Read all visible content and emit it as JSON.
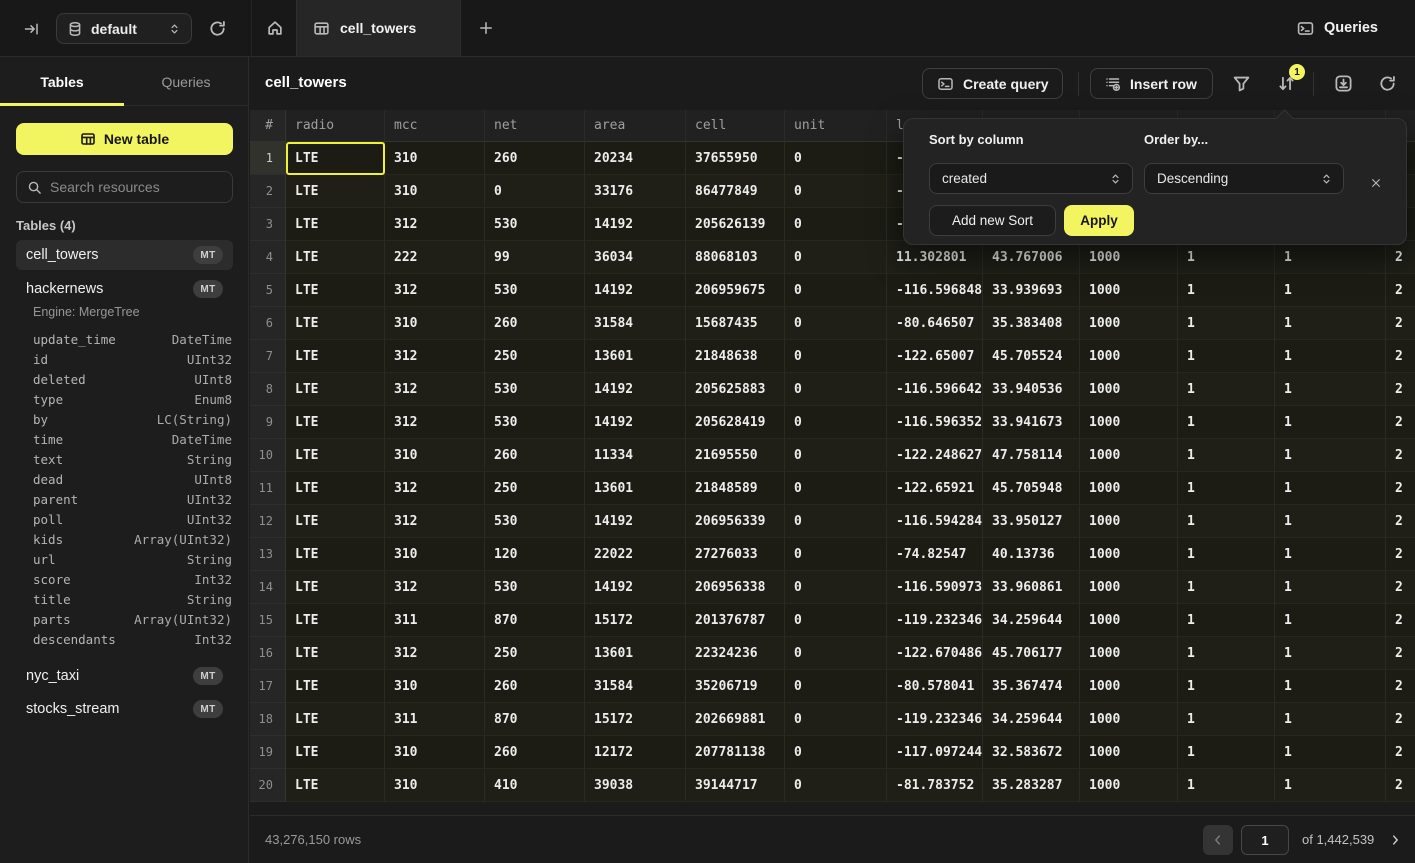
{
  "colors": {
    "accent": "#f2f55f"
  },
  "topbar": {
    "database_selector": "default",
    "active_tab": "cell_towers",
    "queries_label": "Queries"
  },
  "sidebar": {
    "tabs": {
      "tables": "Tables",
      "queries": "Queries"
    },
    "new_table_label": "New table",
    "search_placeholder": "Search resources",
    "section_label": "Tables (4)",
    "tables": [
      {
        "name": "cell_towers",
        "badge": "MT"
      },
      {
        "name": "hackernews",
        "badge": "MT"
      },
      {
        "name": "nyc_taxi",
        "badge": "MT"
      },
      {
        "name": "stocks_stream",
        "badge": "MT"
      }
    ],
    "engine_label": "Engine: MergeTree",
    "schema": [
      [
        "update_time",
        "DateTime"
      ],
      [
        "id",
        "UInt32"
      ],
      [
        "deleted",
        "UInt8"
      ],
      [
        "type",
        "Enum8"
      ],
      [
        "by",
        "LC(String)"
      ],
      [
        "time",
        "DateTime"
      ],
      [
        "text",
        "String"
      ],
      [
        "dead",
        "UInt8"
      ],
      [
        "parent",
        "UInt32"
      ],
      [
        "poll",
        "UInt32"
      ],
      [
        "kids",
        "Array(UInt32)"
      ],
      [
        "url",
        "String"
      ],
      [
        "score",
        "Int32"
      ],
      [
        "title",
        "String"
      ],
      [
        "parts",
        "Array(UInt32)"
      ],
      [
        "descendants",
        "Int32"
      ]
    ]
  },
  "main": {
    "title": "cell_towers",
    "create_query_label": "Create query",
    "insert_row_label": "Insert row",
    "sort_badge": "1",
    "table": {
      "column_labels": [
        "#",
        "radio",
        "mcc",
        "net",
        "area",
        "cell",
        "unit",
        "lon",
        "",
        "",
        "",
        "",
        ""
      ],
      "rows": [
        [
          "1",
          "LTE",
          "310",
          "260",
          "20234",
          "37655950",
          "0",
          "-7",
          "",
          "",
          "",
          "",
          ""
        ],
        [
          "2",
          "LTE",
          "310",
          "0",
          "33176",
          "86477849",
          "0",
          "-8",
          "",
          "",
          "",
          "",
          ""
        ],
        [
          "3",
          "LTE",
          "312",
          "530",
          "14192",
          "205626139",
          "0",
          "-1",
          "",
          "",
          "",
          "",
          ""
        ],
        [
          "4",
          "LTE",
          "222",
          "99",
          "36034",
          "88068103",
          "0",
          "11.302801",
          "43.767006",
          "1000",
          "1",
          "1",
          "2"
        ],
        [
          "5",
          "LTE",
          "312",
          "530",
          "14192",
          "206959675",
          "0",
          "-116.596848",
          "33.939693",
          "1000",
          "1",
          "1",
          "2"
        ],
        [
          "6",
          "LTE",
          "310",
          "260",
          "31584",
          "15687435",
          "0",
          "-80.646507",
          "35.383408",
          "1000",
          "1",
          "1",
          "2"
        ],
        [
          "7",
          "LTE",
          "312",
          "250",
          "13601",
          "21848638",
          "0",
          "-122.65007",
          "45.705524",
          "1000",
          "1",
          "1",
          "2"
        ],
        [
          "8",
          "LTE",
          "312",
          "530",
          "14192",
          "205625883",
          "0",
          "-116.596642",
          "33.940536",
          "1000",
          "1",
          "1",
          "2"
        ],
        [
          "9",
          "LTE",
          "312",
          "530",
          "14192",
          "205628419",
          "0",
          "-116.596352",
          "33.941673",
          "1000",
          "1",
          "1",
          "2"
        ],
        [
          "10",
          "LTE",
          "310",
          "260",
          "11334",
          "21695550",
          "0",
          "-122.248627",
          "47.758114",
          "1000",
          "1",
          "1",
          "2"
        ],
        [
          "11",
          "LTE",
          "312",
          "250",
          "13601",
          "21848589",
          "0",
          "-122.65921",
          "45.705948",
          "1000",
          "1",
          "1",
          "2"
        ],
        [
          "12",
          "LTE",
          "312",
          "530",
          "14192",
          "206956339",
          "0",
          "-116.594284",
          "33.950127",
          "1000",
          "1",
          "1",
          "2"
        ],
        [
          "13",
          "LTE",
          "310",
          "120",
          "22022",
          "27276033",
          "0",
          "-74.82547",
          "40.13736",
          "1000",
          "1",
          "1",
          "2"
        ],
        [
          "14",
          "LTE",
          "312",
          "530",
          "14192",
          "206956338",
          "0",
          "-116.590973",
          "33.960861",
          "1000",
          "1",
          "1",
          "2"
        ],
        [
          "15",
          "LTE",
          "311",
          "870",
          "15172",
          "201376787",
          "0",
          "-119.232346",
          "34.259644",
          "1000",
          "1",
          "1",
          "2"
        ],
        [
          "16",
          "LTE",
          "312",
          "250",
          "13601",
          "22324236",
          "0",
          "-122.670486",
          "45.706177",
          "1000",
          "1",
          "1",
          "2"
        ],
        [
          "17",
          "LTE",
          "310",
          "260",
          "31584",
          "35206719",
          "0",
          "-80.578041",
          "35.367474",
          "1000",
          "1",
          "1",
          "2"
        ],
        [
          "18",
          "LTE",
          "311",
          "870",
          "15172",
          "202669881",
          "0",
          "-119.232346",
          "34.259644",
          "1000",
          "1",
          "1",
          "2"
        ],
        [
          "19",
          "LTE",
          "310",
          "260",
          "12172",
          "207781138",
          "0",
          "-117.097244",
          "32.583672",
          "1000",
          "1",
          "1",
          "2"
        ],
        [
          "20",
          "LTE",
          "310",
          "410",
          "39038",
          "39144717",
          "0",
          "-81.783752",
          "35.283287",
          "1000",
          "1",
          "1",
          "2"
        ]
      ]
    },
    "footer": {
      "rows_label": "43,276,150 rows",
      "page": "1",
      "of_label": "of 1,442,539"
    }
  },
  "sort_popup": {
    "sort_by_label": "Sort by column",
    "sort_column": "created",
    "order_by_label": "Order by...",
    "order_value": "Descending",
    "add_sort_label": "Add new Sort",
    "apply_label": "Apply"
  }
}
